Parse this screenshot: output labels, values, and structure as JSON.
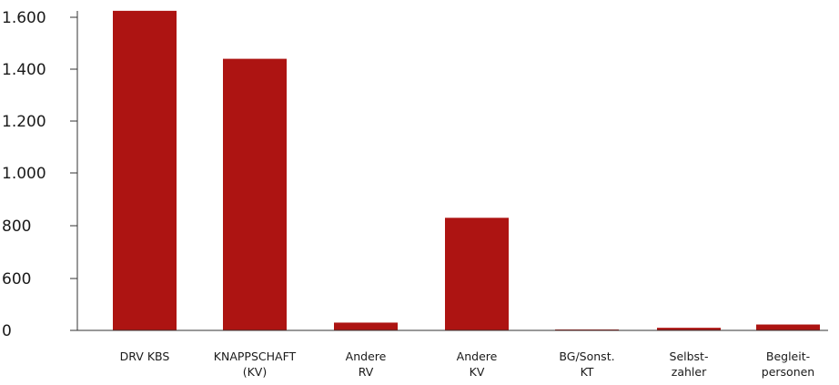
{
  "chart_data": {
    "type": "bar",
    "categories": [
      [
        "DRV KBS"
      ],
      [
        "KNAPPSCHAFT",
        "(KV)"
      ],
      [
        "Andere",
        "RV"
      ],
      [
        "Andere",
        "KV"
      ],
      [
        "BG/Sonst.",
        "KT"
      ],
      [
        "Selbst-",
        "zahler"
      ],
      [
        "Begleit-",
        "personen"
      ]
    ],
    "values": [
      1625,
      1440,
      90,
      830,
      5,
      30,
      68
    ],
    "yticks": [
      {
        "value": 0,
        "label": "0"
      },
      {
        "value": 600,
        "label": "600"
      },
      {
        "value": 800,
        "label": "800"
      },
      {
        "value": 1000,
        "label": "1.000"
      },
      {
        "value": 1200,
        "label": "1.200"
      },
      {
        "value": 1400,
        "label": "1.400"
      },
      {
        "value": 1600,
        "label": "1.600"
      }
    ],
    "bar_color": "#ad1412",
    "axis_color": "#333333",
    "grid": false,
    "legend": "none"
  }
}
